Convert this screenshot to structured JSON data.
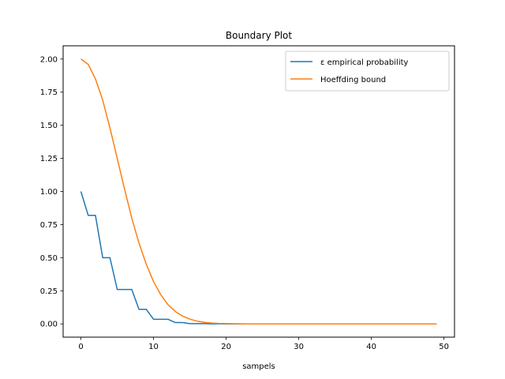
{
  "chart_data": {
    "type": "line",
    "title": "Boundary Plot",
    "xlabel": "sampels",
    "ylabel": "",
    "xlim": [
      -2.45,
      51.45
    ],
    "ylim": [
      -0.1,
      2.1
    ],
    "xticks": [
      0,
      10,
      20,
      30,
      40,
      50
    ],
    "xtick_labels": [
      "0",
      "10",
      "20",
      "30",
      "40",
      "50"
    ],
    "yticks": [
      0.0,
      0.25,
      0.5,
      0.75,
      1.0,
      1.25,
      1.5,
      1.75,
      2.0
    ],
    "ytick_labels": [
      "0.00",
      "0.25",
      "0.50",
      "0.75",
      "1.00",
      "1.25",
      "1.50",
      "1.75",
      "2.00"
    ],
    "grid": false,
    "legend_position": "top-right",
    "series": [
      {
        "name": "ε empirical probability",
        "color": "#1f77b4",
        "x": [
          0,
          1,
          2,
          3,
          4,
          5,
          6,
          7,
          8,
          9,
          10,
          11,
          12,
          13,
          14,
          15,
          16,
          17,
          18,
          19,
          20,
          21,
          22,
          23,
          24,
          25,
          26,
          27,
          28,
          29,
          30,
          31,
          32,
          33,
          34,
          35,
          36,
          37,
          38,
          39,
          40,
          41,
          42,
          43,
          44,
          45,
          46,
          47,
          48,
          49
        ],
        "y": [
          1.0,
          0.82,
          0.82,
          0.5,
          0.5,
          0.26,
          0.26,
          0.26,
          0.11,
          0.11,
          0.035,
          0.035,
          0.035,
          0.01,
          0.01,
          0.002,
          0.002,
          0.002,
          0.0005,
          0.0005,
          0.0001,
          0.0001,
          0,
          0,
          0,
          0,
          0,
          0,
          0,
          0,
          0,
          0,
          0,
          0,
          0,
          0,
          0,
          0,
          0,
          0,
          0,
          0,
          0,
          0,
          0,
          0,
          0,
          0,
          0,
          0
        ]
      },
      {
        "name": "Hoeffding bound",
        "color": "#ff7f0e",
        "x": [
          0,
          1,
          2,
          3,
          4,
          5,
          6,
          7,
          8,
          9,
          10,
          11,
          12,
          13,
          14,
          15,
          16,
          17,
          18,
          19,
          20,
          21,
          22,
          23,
          24,
          25,
          26,
          27,
          28,
          29,
          30,
          31,
          32,
          33,
          34,
          35,
          36,
          37,
          38,
          39,
          40,
          41,
          42,
          43,
          44,
          45,
          46,
          47,
          48,
          49
        ],
        "y": [
          2.0,
          1.96,
          1.85,
          1.69,
          1.48,
          1.25,
          1.02,
          0.8,
          0.61,
          0.45,
          0.32,
          0.22,
          0.145,
          0.094,
          0.059,
          0.036,
          0.021,
          0.012,
          0.0067,
          0.0036,
          0.0019,
          0.001,
          0.0005,
          0.0002,
          0.0001,
          5e-05,
          0,
          0,
          0,
          0,
          0,
          0,
          0,
          0,
          0,
          0,
          0,
          0,
          0,
          0,
          0,
          0,
          0,
          0,
          0,
          0,
          0,
          0,
          0,
          0
        ]
      }
    ]
  }
}
